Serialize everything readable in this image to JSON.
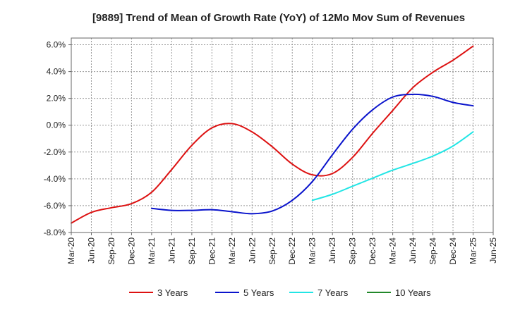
{
  "chart_data": {
    "type": "line",
    "title": "[9889]  Trend of Mean of Growth Rate (YoY) of 12Mo Mov Sum of Revenues",
    "xlabel": "",
    "ylabel": "",
    "ylim": [
      -8.0,
      6.5
    ],
    "yticks": [
      -8.0,
      -6.0,
      -4.0,
      -2.0,
      0.0,
      2.0,
      4.0,
      6.0
    ],
    "ytick_labels": [
      "-8.0%",
      "-6.0%",
      "-4.0%",
      "-2.0%",
      "0.0%",
      "2.0%",
      "4.0%",
      "6.0%"
    ],
    "x_categories": [
      "Mar-20",
      "Jun-20",
      "Sep-20",
      "Dec-20",
      "Mar-21",
      "Jun-21",
      "Sep-21",
      "Dec-21",
      "Mar-22",
      "Jun-22",
      "Sep-22",
      "Dec-22",
      "Mar-23",
      "Jun-23",
      "Sep-23",
      "Dec-23",
      "Mar-24",
      "Jun-24",
      "Sep-24",
      "Dec-24",
      "Mar-25",
      "Jun-25"
    ],
    "grid": true,
    "legend_position": "bottom",
    "series": [
      {
        "name": "3 Years",
        "color": "#dd1111",
        "points": [
          [
            0,
            -7.3
          ],
          [
            1,
            -6.5
          ],
          [
            2,
            -6.15
          ],
          [
            3,
            -5.85
          ],
          [
            4,
            -5.0
          ],
          [
            5,
            -3.3
          ],
          [
            6,
            -1.5
          ],
          [
            7,
            -0.2
          ],
          [
            8,
            0.12
          ],
          [
            9,
            -0.5
          ],
          [
            10,
            -1.6
          ],
          [
            11,
            -2.9
          ],
          [
            12,
            -3.7
          ],
          [
            13,
            -3.6
          ],
          [
            14,
            -2.4
          ],
          [
            15,
            -0.6
          ],
          [
            16,
            1.1
          ],
          [
            17,
            2.8
          ],
          [
            18,
            3.95
          ],
          [
            19,
            4.85
          ],
          [
            20,
            5.9
          ]
        ]
      },
      {
        "name": "5 Years",
        "color": "#0a14cc",
        "points": [
          [
            4,
            -6.2
          ],
          [
            5,
            -6.35
          ],
          [
            6,
            -6.35
          ],
          [
            7,
            -6.3
          ],
          [
            8,
            -6.45
          ],
          [
            9,
            -6.6
          ],
          [
            10,
            -6.4
          ],
          [
            11,
            -5.6
          ],
          [
            12,
            -4.2
          ],
          [
            13,
            -2.2
          ],
          [
            14,
            -0.3
          ],
          [
            15,
            1.15
          ],
          [
            16,
            2.1
          ],
          [
            17,
            2.3
          ],
          [
            18,
            2.15
          ],
          [
            19,
            1.7
          ],
          [
            20,
            1.45
          ]
        ]
      },
      {
        "name": "7 Years",
        "color": "#22e5e5",
        "points": [
          [
            12,
            -5.6
          ],
          [
            13,
            -5.15
          ],
          [
            14,
            -4.55
          ],
          [
            15,
            -3.95
          ],
          [
            16,
            -3.35
          ],
          [
            17,
            -2.85
          ],
          [
            18,
            -2.3
          ],
          [
            19,
            -1.55
          ],
          [
            20,
            -0.5
          ]
        ]
      },
      {
        "name": "10 Years",
        "color": "#22882a",
        "points": []
      }
    ]
  }
}
